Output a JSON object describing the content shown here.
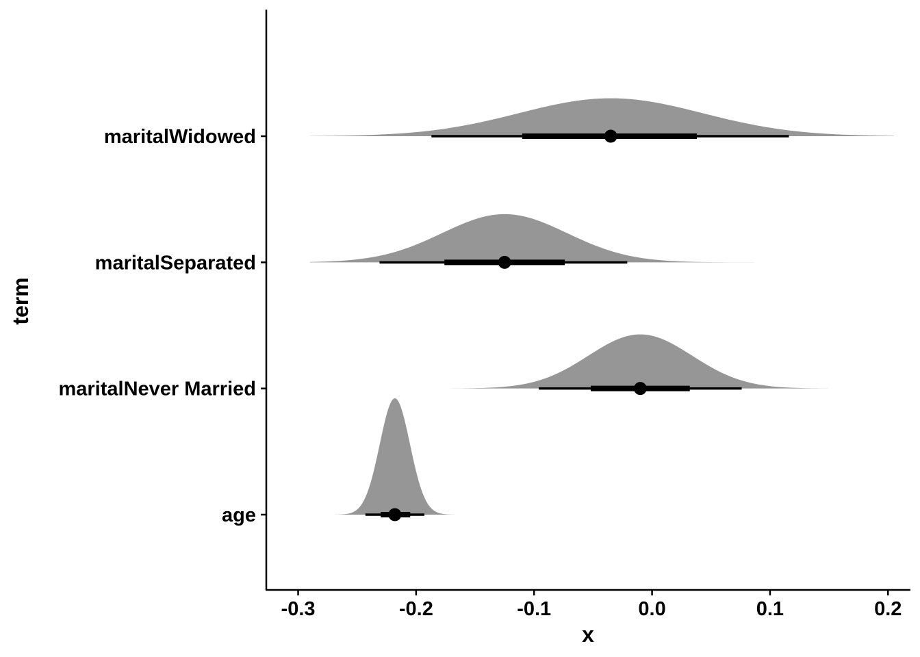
{
  "chart_data": {
    "type": "halfeye",
    "xlabel": "x",
    "ylabel": "term",
    "xlim": [
      -0.327,
      0.219
    ],
    "x_ticks": [
      -0.3,
      -0.2,
      -0.1,
      0.0,
      0.1,
      0.2
    ],
    "x_tick_labels": [
      "-0.3",
      "-0.2",
      "-0.1",
      "0.0",
      "0.1",
      "0.2"
    ],
    "categories": [
      "age",
      "maritalNever Married",
      "maritalSeparated",
      "maritalWidowed"
    ],
    "series": [
      {
        "term": "age",
        "point": -0.218,
        "mean": -0.218,
        "sd": 0.0128,
        "range": [
          -0.27,
          -0.16
        ],
        "interval_66": [
          -0.23,
          -0.205
        ],
        "interval_95": [
          -0.243,
          -0.193
        ]
      },
      {
        "term": "maritalNever Married",
        "point": -0.01,
        "mean": -0.01,
        "sd": 0.044,
        "range": [
          -0.18,
          0.17
        ],
        "interval_66": [
          -0.052,
          0.032
        ],
        "interval_95": [
          -0.096,
          0.076
        ]
      },
      {
        "term": "maritalSeparated",
        "point": -0.125,
        "mean": -0.125,
        "sd": 0.053,
        "range": [
          -0.29,
          0.09
        ],
        "interval_66": [
          -0.176,
          -0.074
        ],
        "interval_95": [
          -0.231,
          -0.021
        ]
      },
      {
        "term": "maritalWidowed",
        "point": -0.035,
        "mean": -0.035,
        "sd": 0.078,
        "range": [
          -0.29,
          0.205
        ],
        "interval_66": [
          -0.11,
          0.038
        ],
        "interval_95": [
          -0.187,
          0.116
        ]
      }
    ],
    "grid": false,
    "fill_color": "#969696",
    "interval_color": "#000000"
  }
}
